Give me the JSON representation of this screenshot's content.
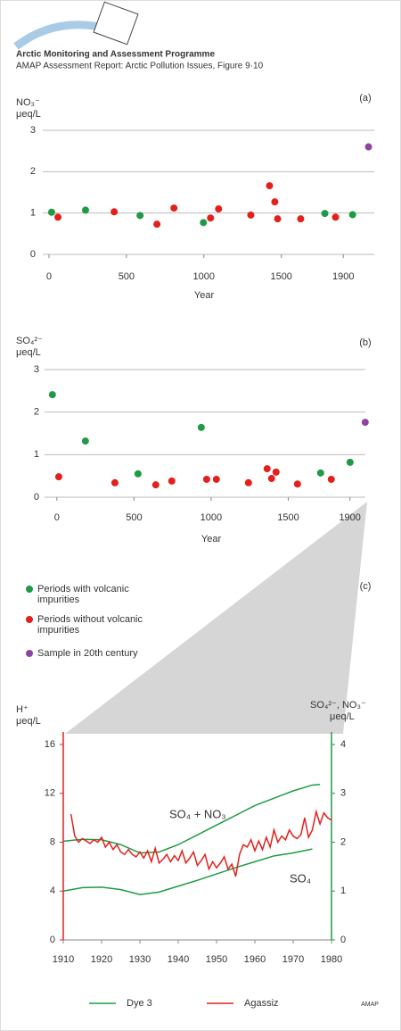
{
  "header": {
    "title": "Arctic Monitoring and Assessment Programme",
    "subtitle": "AMAP Assessment Report: Arctic Pollution Issues, Figure 9·10",
    "footer": "AMAP"
  },
  "chart_data": [
    {
      "type": "scatter",
      "panel": "(a)",
      "y_label": "NO₃⁻",
      "y_unit": "μeq/L",
      "x_label": "Year",
      "xlim": [
        -40,
        2100
      ],
      "xticks": [
        0,
        500,
        1000,
        1500,
        1900
      ],
      "ylim": [
        0,
        3
      ],
      "yticks": [
        0,
        1,
        2,
        3
      ],
      "grid": true,
      "series": [
        {
          "name": "Periods with volcanic impurities",
          "color": "#1f9a46",
          "x": [
            17,
            236,
            588,
            997,
            1781,
            1960
          ],
          "values": [
            1.02,
            1.07,
            0.94,
            0.77,
            0.99,
            0.96
          ]
        },
        {
          "name": "Periods without volcanic impurities",
          "color": "#e3201c",
          "x": [
            58,
            421,
            697,
            807,
            1043,
            1095,
            1303,
            1424,
            1458,
            1476,
            1625,
            1850
          ],
          "values": [
            0.9,
            1.03,
            0.73,
            1.12,
            0.88,
            1.1,
            0.95,
            1.66,
            1.27,
            0.86,
            0.86,
            0.9
          ]
        },
        {
          "name": "Sample in 20th century",
          "color": "#8e44a0",
          "x": [
            2063
          ],
          "values": [
            2.6
          ]
        }
      ]
    },
    {
      "type": "scatter",
      "panel": "(b)",
      "y_label": "SO₄²⁻",
      "y_unit": "μeq/L",
      "x_label": "Year",
      "xlim": [
        -80,
        2000
      ],
      "xticks": [
        0,
        500,
        1000,
        1500,
        1900
      ],
      "ylim": [
        0,
        3
      ],
      "yticks": [
        0,
        1,
        2,
        3
      ],
      "grid": true,
      "series": [
        {
          "color": "#1f9a46",
          "x": [
            -29,
            185,
            526,
            936,
            1710,
            1901
          ],
          "values": [
            2.41,
            1.32,
            0.55,
            1.64,
            0.57,
            0.82
          ]
        },
        {
          "color": "#e3201c",
          "x": [
            12,
            376,
            641,
            745,
            971,
            1034,
            1242,
            1363,
            1392,
            1421,
            1560,
            1779
          ],
          "values": [
            0.48,
            0.34,
            0.29,
            0.38,
            0.42,
            0.42,
            0.34,
            0.67,
            0.44,
            0.59,
            0.31,
            0.42
          ]
        },
        {
          "color": "#8e44a0",
          "x": [
            1999
          ],
          "values": [
            1.76
          ]
        }
      ]
    },
    {
      "type": "line",
      "panel": "(c)",
      "y_label": "H⁺",
      "y_unit": "μeq/L",
      "y2_label": "SO₄²⁻, NO₃⁻",
      "y2_unit": "μeq/L",
      "xlim": [
        1910,
        1980
      ],
      "xticks": [
        1910,
        1920,
        1930,
        1940,
        1950,
        1960,
        1970,
        1980
      ],
      "ylim": [
        0,
        16
      ],
      "yticks": [
        0,
        4,
        8,
        12,
        16
      ],
      "y2lim": [
        0,
        4
      ],
      "y2ticks": [
        0,
        1,
        2,
        3,
        4
      ],
      "series": [
        {
          "name": "Dye 3",
          "color": "#1f9a46",
          "curves": [
            {
              "label": "SO₄ + NO₃",
              "axis": "y2",
              "x": [
                1910,
                1915,
                1920,
                1925,
                1930,
                1935,
                1940,
                1945,
                1950,
                1955,
                1960,
                1965,
                1970,
                1975,
                1977
              ],
              "values": [
                2.02,
                2.06,
                2.05,
                1.95,
                1.78,
                1.8,
                1.95,
                2.15,
                2.35,
                2.55,
                2.75,
                2.9,
                3.05,
                3.17,
                3.18
              ]
            },
            {
              "label": "SO₄",
              "axis": "y2",
              "x": [
                1910,
                1915,
                1920,
                1925,
                1930,
                1935,
                1940,
                1945,
                1950,
                1955,
                1960,
                1965,
                1970,
                1975
              ],
              "values": [
                1.0,
                1.07,
                1.08,
                1.03,
                0.93,
                0.98,
                1.1,
                1.22,
                1.35,
                1.48,
                1.6,
                1.72,
                1.78,
                1.86
              ]
            }
          ]
        },
        {
          "name": "Agassiz",
          "color": "#e3201c",
          "x": [
            1912,
            1913,
            1914,
            1915,
            1916,
            1917,
            1918,
            1919,
            1920,
            1921,
            1922,
            1923,
            1924,
            1925,
            1926,
            1927,
            1928,
            1929,
            1930,
            1931,
            1932,
            1933,
            1934,
            1935,
            1936,
            1937,
            1938,
            1939,
            1940,
            1941,
            1942,
            1943,
            1944,
            1945,
            1946,
            1947,
            1948,
            1949,
            1950,
            1951,
            1952,
            1953,
            1954,
            1955,
            1956,
            1957,
            1958,
            1959,
            1960,
            1961,
            1962,
            1963,
            1964,
            1965,
            1966,
            1967,
            1968,
            1969,
            1970,
            1971,
            1972,
            1973,
            1974,
            1975,
            1976,
            1977,
            1978,
            1979,
            1980
          ],
          "values": [
            10.3,
            8.5,
            8.0,
            8.3,
            8.1,
            7.9,
            8.2,
            8.0,
            8.4,
            7.6,
            8.0,
            7.4,
            7.8,
            7.2,
            7.0,
            7.4,
            7.0,
            6.8,
            7.2,
            6.7,
            7.3,
            6.4,
            7.5,
            6.3,
            6.6,
            7.0,
            6.4,
            6.9,
            6.5,
            7.3,
            6.3,
            6.7,
            7.2,
            6.1,
            6.5,
            7.0,
            5.8,
            6.4,
            5.9,
            6.3,
            6.8,
            5.8,
            6.2,
            5.2,
            7.0,
            7.8,
            7.6,
            8.2,
            7.3,
            8.1,
            7.4,
            8.4,
            7.6,
            9.0,
            8.0,
            8.5,
            8.2,
            9.0,
            8.5,
            8.3,
            8.6,
            10.0,
            8.4,
            9.0,
            10.5,
            9.5,
            10.4,
            10.0,
            9.8
          ]
        }
      ]
    }
  ]
}
